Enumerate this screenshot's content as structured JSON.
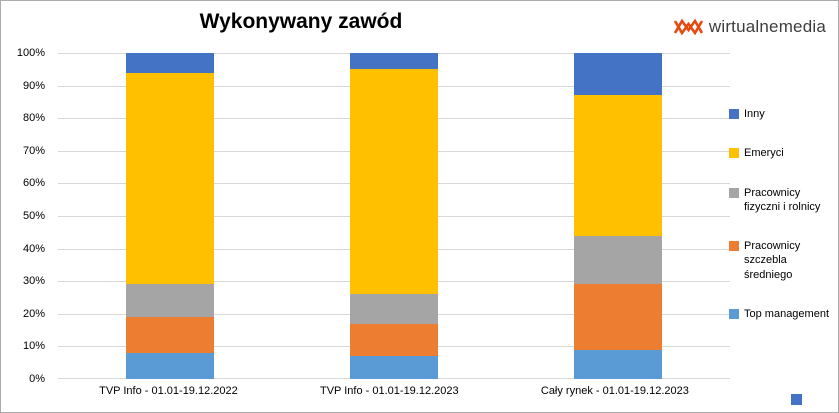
{
  "header": {
    "brand": "wirtualnemedia"
  },
  "chart_data": {
    "type": "bar",
    "stacked": true,
    "percent": true,
    "title": "Wykonywany zawód",
    "categories": [
      "TVP Info - 01.01-19.12.2022",
      "TVP Info - 01.01-19.12.2023",
      "Cały rynek - 01.01-19.12.2023"
    ],
    "series": [
      {
        "name": "Top management",
        "color": "#5B9BD5",
        "values": [
          8,
          7,
          9
        ]
      },
      {
        "name": "Pracownicy szczebla średniego",
        "color": "#ED7D31",
        "values": [
          11,
          10,
          20
        ]
      },
      {
        "name": "Pracownicy fizyczni i rolnicy",
        "color": "#A5A5A5",
        "values": [
          10,
          9,
          15
        ]
      },
      {
        "name": "Emeryci",
        "color": "#FFC000",
        "values": [
          65,
          69,
          43
        ]
      },
      {
        "name": "Inny",
        "color": "#4472C4",
        "values": [
          6,
          5,
          13
        ]
      }
    ],
    "y_ticks": [
      "100%",
      "90%",
      "80%",
      "70%",
      "60%",
      "50%",
      "40%",
      "30%",
      "20%",
      "10%",
      "0%"
    ],
    "ylim": [
      0,
      100
    ],
    "grid": true,
    "legend_position": "right",
    "legend_order": [
      "Inny",
      "Emeryci",
      "Pracownicy fizyczni i rolnicy",
      "Pracownicy szczebla średniego",
      "Top management"
    ],
    "accent_color": "#E8490F",
    "gridline_color": "#d9d9d9"
  }
}
